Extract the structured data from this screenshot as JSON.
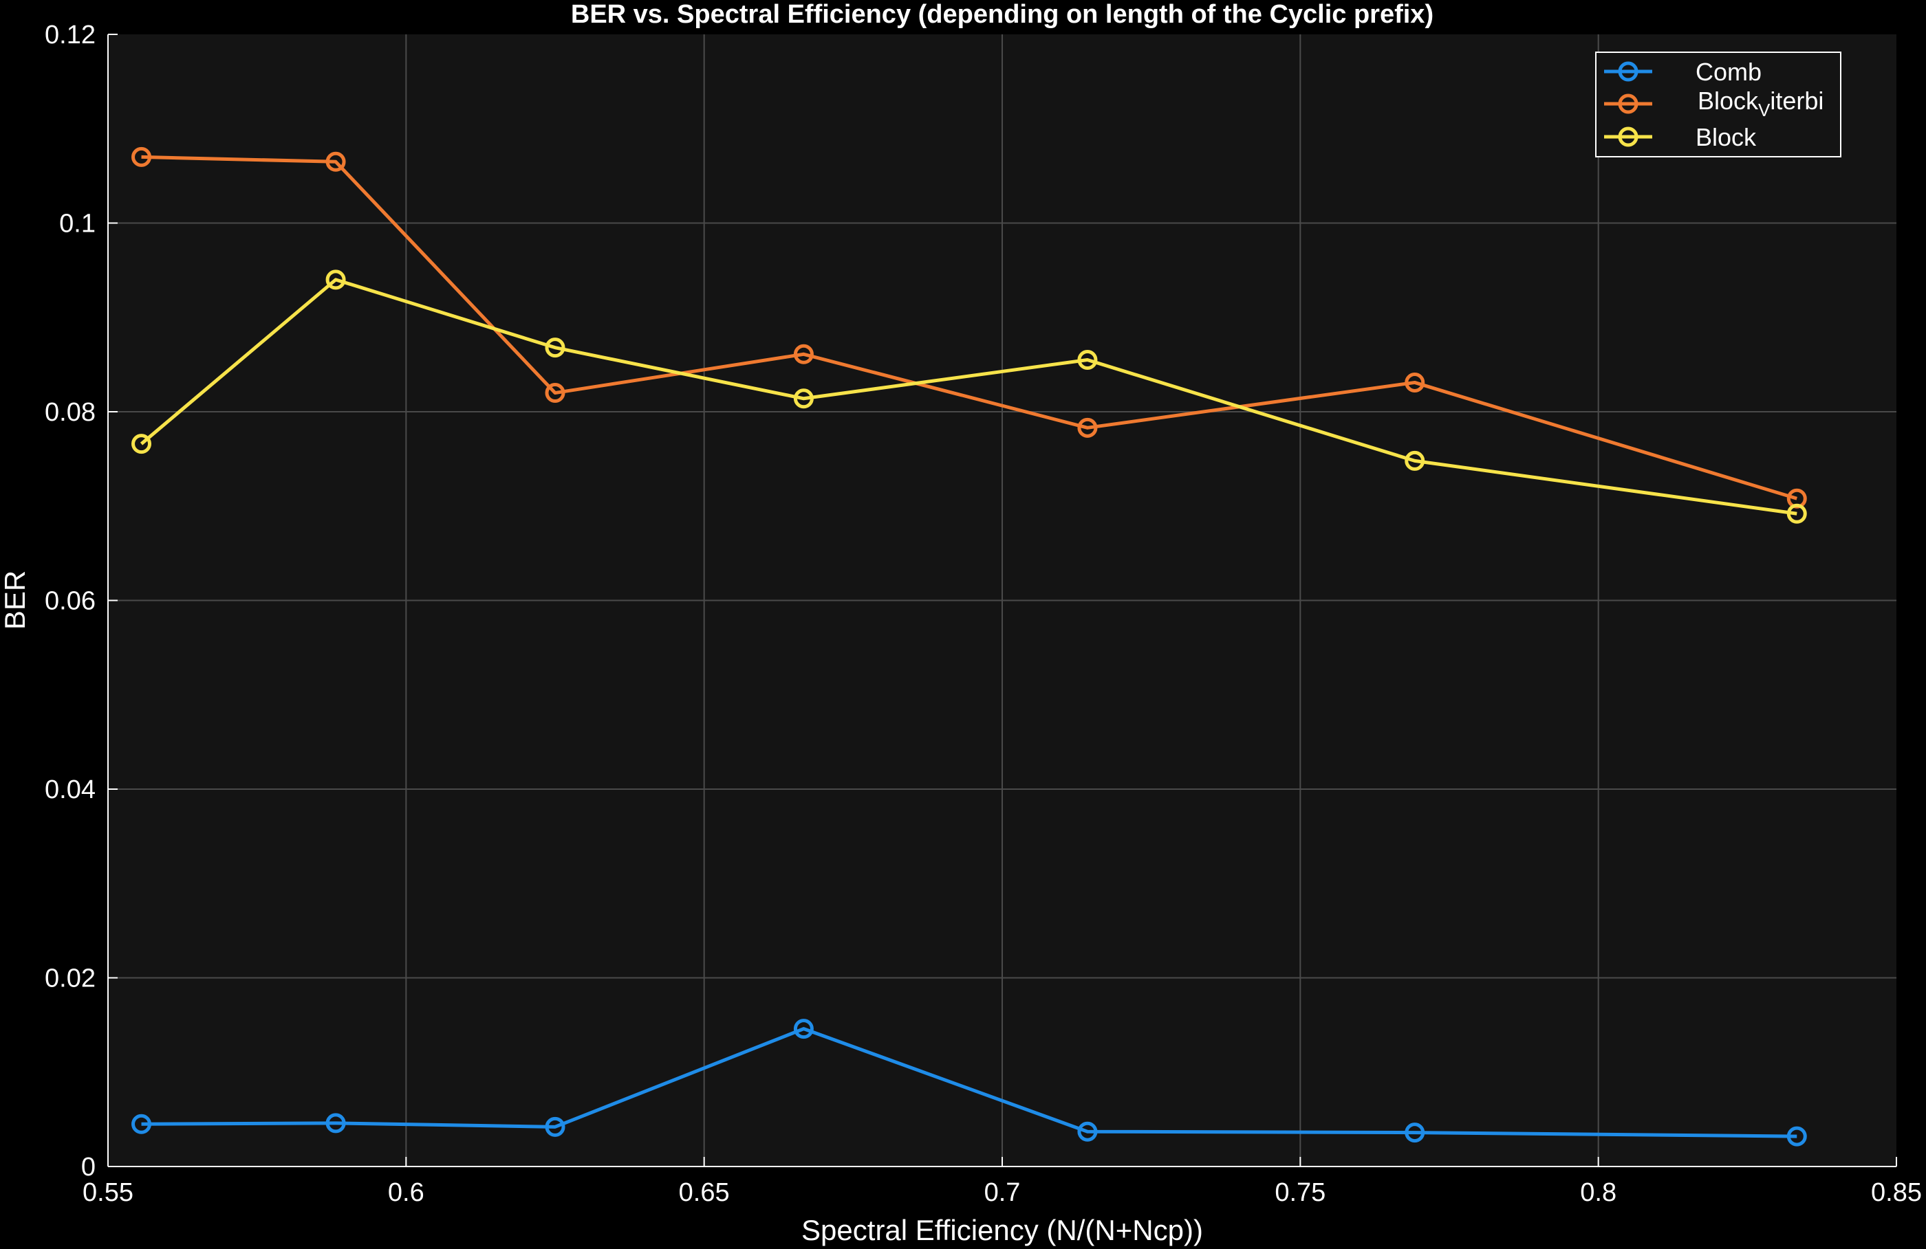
{
  "chart_data": {
    "type": "line",
    "title": "BER vs. Spectral Efficiency (depending on length of the Cyclic prefix)",
    "xlabel": "Spectral Efficiency (N/(N+Ncp))",
    "ylabel": "BER",
    "xlim": [
      0.55,
      0.85
    ],
    "ylim": [
      0,
      0.12
    ],
    "xticks": [
      0.55,
      0.6,
      0.65,
      0.7,
      0.75,
      0.8,
      0.85
    ],
    "yticks": [
      0,
      0.02,
      0.04,
      0.06,
      0.08,
      0.1,
      0.12
    ],
    "xtick_labels": [
      "0.55",
      "0.6",
      "0.65",
      "0.7",
      "0.75",
      "0.8",
      "0.85"
    ],
    "ytick_labels": [
      "0",
      "0.02",
      "0.04",
      "0.06",
      "0.08",
      "0.1",
      "0.12"
    ],
    "grid": true,
    "legend_position": "top-right",
    "background": "#141414",
    "x": [
      0.5556,
      0.5882,
      0.625,
      0.6667,
      0.7143,
      0.7692,
      0.8333
    ],
    "series": [
      {
        "name": "Comb",
        "values": [
          0.0045,
          0.0046,
          0.0042,
          0.0146,
          0.0037,
          0.0036,
          0.0032
        ],
        "color": "#1f8ce8"
      },
      {
        "name": "Block",
        "name_sub": "V",
        "name_rest": "iterbi",
        "values": [
          0.107,
          0.1065,
          0.082,
          0.0861,
          0.0783,
          0.0831,
          0.0708
        ],
        "color": "#f07a30"
      },
      {
        "name": "Block",
        "values": [
          0.0766,
          0.094,
          0.0868,
          0.0814,
          0.0855,
          0.0748,
          0.0692
        ],
        "color": "#f7e34a"
      }
    ]
  }
}
